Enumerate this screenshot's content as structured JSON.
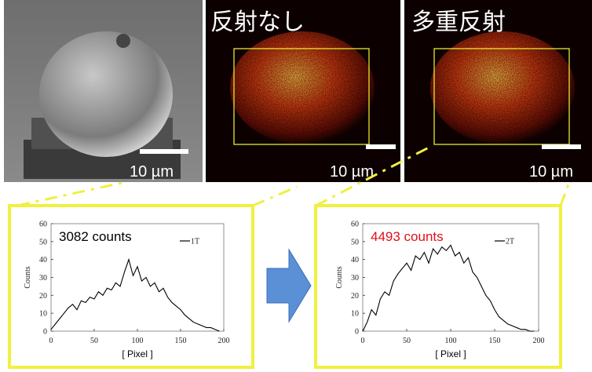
{
  "panels": [
    {
      "scale_label": "10 µm"
    },
    {
      "title": "反射なし",
      "scale_label": "10 µm"
    },
    {
      "title": "多重反射",
      "scale_label": "10 µm"
    }
  ],
  "chart_data": [
    {
      "type": "line",
      "annotation": "3082 counts",
      "annotation_color": "#000000",
      "xlabel": "[ Pixel ]",
      "ylabel": "Counts",
      "x": [
        0,
        5,
        10,
        15,
        20,
        25,
        30,
        35,
        40,
        45,
        50,
        55,
        60,
        65,
        70,
        75,
        80,
        85,
        90,
        95,
        100,
        105,
        110,
        115,
        120,
        125,
        130,
        135,
        140,
        145,
        150,
        155,
        160,
        165,
        170,
        175,
        180,
        185,
        190,
        195
      ],
      "series": [
        {
          "name": "1T",
          "color": "#000000",
          "values": [
            1,
            4,
            7,
            10,
            13,
            15,
            12,
            17,
            16,
            19,
            18,
            22,
            20,
            24,
            23,
            27,
            25,
            33,
            40,
            31,
            36,
            28,
            30,
            25,
            27,
            22,
            24,
            19,
            16,
            14,
            12,
            9,
            7,
            5,
            4,
            3,
            2,
            2,
            1,
            0
          ]
        }
      ],
      "xlim": [
        0,
        200
      ],
      "ylim": [
        0,
        60
      ],
      "xticks": [
        0,
        50,
        100,
        150,
        200
      ],
      "yticks": [
        0,
        10,
        20,
        30,
        40,
        50,
        60
      ]
    },
    {
      "type": "line",
      "annotation": "4493 counts",
      "annotation_color": "#e0101a",
      "xlabel": "[ Pixel ]",
      "ylabel": "Counts",
      "x": [
        0,
        5,
        10,
        15,
        20,
        25,
        30,
        35,
        40,
        45,
        50,
        55,
        60,
        65,
        70,
        75,
        80,
        85,
        90,
        95,
        100,
        105,
        110,
        115,
        120,
        125,
        130,
        135,
        140,
        145,
        150,
        155,
        160,
        165,
        170,
        175,
        180,
        185,
        190,
        195
      ],
      "series": [
        {
          "name": "2T",
          "color": "#000000",
          "values": [
            0,
            5,
            12,
            9,
            18,
            22,
            20,
            28,
            32,
            35,
            38,
            34,
            42,
            40,
            44,
            38,
            46,
            43,
            47,
            45,
            48,
            42,
            44,
            38,
            41,
            33,
            30,
            25,
            20,
            17,
            12,
            8,
            6,
            4,
            3,
            2,
            1,
            1,
            0,
            0
          ]
        }
      ],
      "xlim": [
        0,
        200
      ],
      "ylim": [
        0,
        60
      ],
      "xticks": [
        0,
        50,
        100,
        150,
        200
      ],
      "yticks": [
        0,
        10,
        20,
        30,
        40,
        50,
        60
      ]
    }
  ]
}
